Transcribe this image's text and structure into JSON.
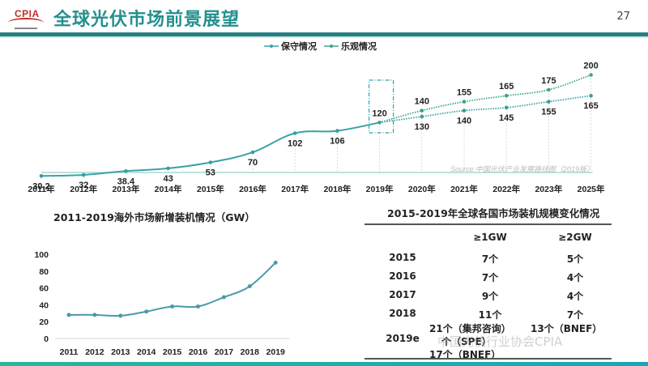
{
  "header": {
    "logo_text": "CPIA",
    "title": "全球光伏市场前景展望",
    "page_number": "27"
  },
  "colors": {
    "accent": "#23908e",
    "header_bar": "#267f82",
    "conservative_line": "#3aa3a5",
    "optimistic_line": "#3aa58a",
    "overseas_line": "#4a9aa8"
  },
  "chart_data": [
    {
      "type": "line",
      "title": "",
      "legend": [
        "保守情况",
        "乐观情况"
      ],
      "legend_position": "top-center",
      "categories": [
        "2011年",
        "2012年",
        "2013年",
        "2014年",
        "2015年",
        "2016年",
        "2017年",
        "2018年",
        "2019年",
        "2020年",
        "2021年",
        "2022年",
        "2023年",
        "2025年"
      ],
      "series": [
        {
          "name": "保守情况",
          "values": [
            30.2,
            32,
            38.4,
            43,
            53,
            70,
            102,
            106,
            120,
            130,
            140,
            145,
            155,
            165
          ],
          "labels": [
            "30.2",
            "32",
            "38.4",
            "43",
            "53",
            "70",
            "102",
            "106",
            "120",
            "130",
            "140",
            "145",
            "155",
            "165"
          ]
        },
        {
          "name": "乐观情况",
          "values": [
            null,
            null,
            null,
            null,
            null,
            null,
            null,
            null,
            120,
            140,
            155,
            165,
            175,
            200
          ],
          "labels": [
            "",
            "",
            "",
            "",
            "",
            "",
            "",
            "",
            "",
            "140",
            "155",
            "165",
            "175",
            "200"
          ]
        }
      ],
      "highlight_category": "2019年",
      "forecast_start": "2019年",
      "source": "Source:中国光伏产业发展路线图（2019版）",
      "ylim": [
        0,
        210
      ],
      "grid": false
    },
    {
      "type": "line",
      "title": "2011-2019海外市场新增装机情况（GW）",
      "categories": [
        "2011",
        "2012",
        "2013",
        "2014",
        "2015",
        "2016",
        "2017",
        "2018",
        "2019"
      ],
      "series": [
        {
          "name": "海外市场新增装机",
          "values": [
            28,
            28,
            27,
            32,
            38,
            38,
            49,
            62,
            90
          ]
        }
      ],
      "yticks": [
        "0",
        "20",
        "40",
        "60",
        "80",
        "100"
      ],
      "ylim": [
        0,
        100
      ],
      "grid": false
    }
  ],
  "table": {
    "title": "2015-2019年全球各国市场装机规模变化情况",
    "headers": [
      "",
      "≥1GW",
      "≥2GW"
    ],
    "rows": [
      {
        "year": "2015",
        "gw1": "7个",
        "gw2": "5个"
      },
      {
        "year": "2016",
        "gw1": "7个",
        "gw2": "4个"
      },
      {
        "year": "2017",
        "gw1": "9个",
        "gw2": "4个"
      },
      {
        "year": "2018",
        "gw1": "11个",
        "gw2": "7个"
      }
    ],
    "last_row": {
      "year": "2019e",
      "gw1_lines": [
        "21个（集邦咨询）",
        "个（SPE）",
        "17个（BNEF）"
      ],
      "gw2": "13个（BNEF）"
    }
  },
  "watermark": "中国光伏行业协会CPIA"
}
